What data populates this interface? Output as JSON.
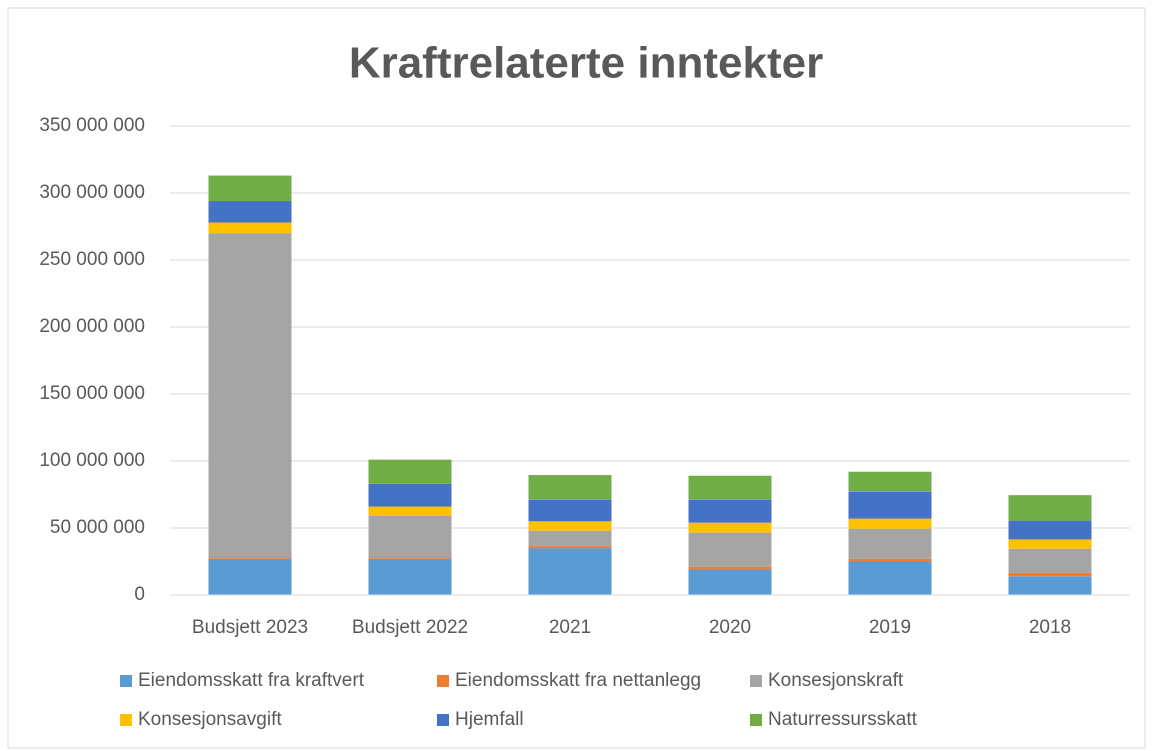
{
  "chart_data": {
    "type": "stacked_bar",
    "title": "Kraftrelaterte inntekter",
    "categories": [
      "Budsjett 2023",
      "Budsjett 2022",
      "2021",
      "2020",
      "2019",
      "2018"
    ],
    "series": [
      {
        "name": "Eiendomsskatt fra kraftvert",
        "color": "#5b9bd5",
        "values": [
          27000000,
          27000000,
          35000000,
          19000000,
          25000000,
          14000000
        ]
      },
      {
        "name": "Eiendomsskatt fra nettanlegg",
        "color": "#ed7d31",
        "values": [
          1000000,
          1000000,
          1500000,
          2000000,
          2000000,
          2500000
        ]
      },
      {
        "name": "Konsesjonskraft",
        "color": "#a5a5a5",
        "values": [
          242000000,
          31000000,
          11500000,
          25500000,
          22500000,
          18000000
        ]
      },
      {
        "name": "Konsesjonsavgift",
        "color": "#ffc000",
        "values": [
          8000000,
          7000000,
          7000000,
          7500000,
          7500000,
          7000000
        ]
      },
      {
        "name": "Hjemfall",
        "color": "#4472c4",
        "values": [
          16000000,
          17000000,
          16000000,
          17000000,
          20000000,
          14000000
        ]
      },
      {
        "name": "Naturressursskatt",
        "color": "#70ad47",
        "values": [
          19000000,
          18000000,
          18500000,
          18000000,
          15000000,
          19000000
        ]
      }
    ],
    "ylim": [
      0,
      350000000
    ],
    "yticks": [
      0,
      {
        "value": 50000000,
        "label": "50 000 000"
      },
      {
        "value": 100000000,
        "label": "100 000 000"
      },
      {
        "value": 150000000,
        "label": "150 000 000"
      },
      {
        "value": 200000000,
        "label": "200 000 000"
      },
      {
        "value": 250000000,
        "label": "250 000 000"
      },
      {
        "value": 300000000,
        "label": "300 000 000"
      },
      {
        "value": 350000000,
        "label": "350 000 000"
      }
    ],
    "grid": true
  }
}
